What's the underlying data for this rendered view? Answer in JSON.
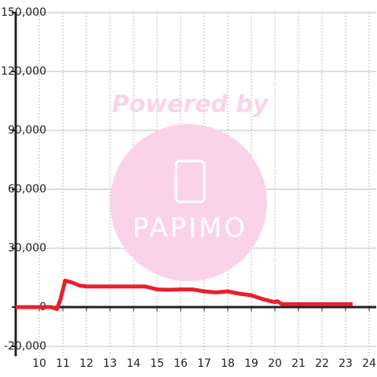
{
  "chart_data": {
    "type": "line",
    "x": [
      9,
      10.5,
      10.75,
      10.9,
      11.1,
      11.4,
      11.7,
      12,
      14.5,
      15,
      15.5,
      16,
      16.5,
      17,
      17.5,
      18,
      18.5,
      19,
      19.5,
      20,
      20.1,
      20.3,
      23.3
    ],
    "series": [
      {
        "color": "#e8202e",
        "values": [
          0,
          0,
          -1000,
          4000,
          13500,
          12500,
          11000,
          10500,
          10500,
          9000,
          8800,
          9000,
          9000,
          8000,
          7500,
          8000,
          6800,
          6000,
          4000,
          2500,
          3000,
          1500,
          1500
        ]
      }
    ],
    "xlim": [
      9,
      24.3
    ],
    "xticks": [
      10,
      11,
      12,
      13,
      14,
      15,
      16,
      17,
      18,
      19,
      20,
      21,
      22,
      23,
      24
    ],
    "ylim": [
      -25000,
      150000
    ],
    "yticks": [
      {
        "value": 150000,
        "label": "150,000"
      },
      {
        "value": 120000,
        "label": "120,000"
      },
      {
        "value": 90000,
        "label": "90,000"
      },
      {
        "value": 60000,
        "label": "60,000"
      },
      {
        "value": 30000,
        "label": "30,000"
      },
      0,
      {
        "value": -20000,
        "label": "-20,000"
      }
    ],
    "grid": true
  },
  "watermark": {
    "line1": "Powered by",
    "line2": "PAPIMO"
  }
}
